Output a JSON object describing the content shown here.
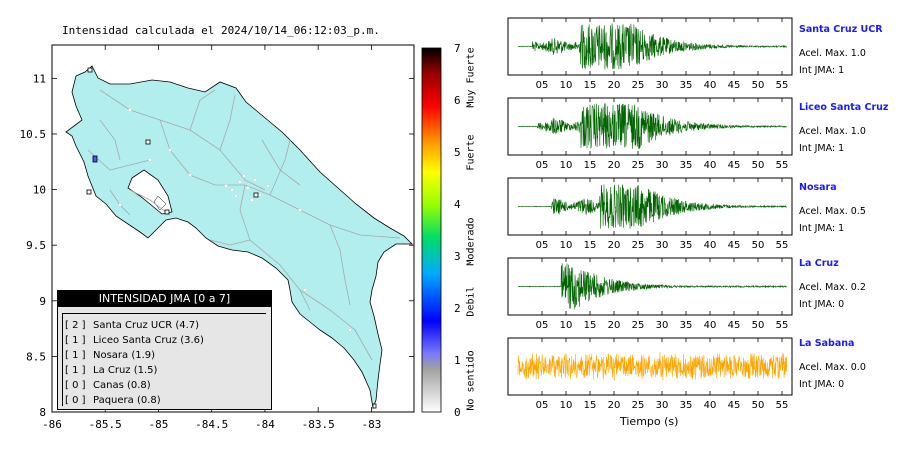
{
  "map": {
    "title": "Intensidad calculada el 2024/10/14_06:12:03_p.m.",
    "x_ticks": [
      "-86",
      "-85.5",
      "-85",
      "-84.5",
      "-84",
      "-83.5",
      "-83"
    ],
    "y_ticks": [
      "11",
      "10.5",
      "10",
      "9.5",
      "9",
      "8.5",
      "8"
    ],
    "land_color": "#b2eeee",
    "border_color": "#000000"
  },
  "legend": {
    "header": "INTENSIDAD JMA [0 a 7]",
    "items": [
      {
        "level": "[ 2 ]",
        "label": "Santa Cruz UCR (4.7)"
      },
      {
        "level": "[ 1 ]",
        "label": "Liceo Santa Cruz (3.6)"
      },
      {
        "level": "[ 1 ]",
        "label": "Nosara (1.9)"
      },
      {
        "level": "[ 1 ]",
        "label": "La Cruz (1.5)"
      },
      {
        "level": "[ 0 ]",
        "label": "Canas (0.8)"
      },
      {
        "level": "[ 0 ]",
        "label": "Paquera (0.8)"
      }
    ]
  },
  "colorbar": {
    "ticks": [
      "0",
      "1",
      "2",
      "3",
      "4",
      "5",
      "6",
      "7"
    ],
    "category_labels": [
      "No sentido",
      "Debil",
      "Moderado",
      "Fuerte",
      "Muy Fuerte"
    ]
  },
  "waveforms": {
    "xlabel": "Tiempo (s)",
    "x_ticks": [
      "05",
      "10",
      "15",
      "20",
      "25",
      "30",
      "35",
      "40",
      "45",
      "50",
      "55"
    ],
    "stations": [
      {
        "name": "Santa Cruz UCR",
        "accel": "Acel. Max. 1.0",
        "int": "Int JMA: 1",
        "color": "#006400"
      },
      {
        "name": "Liceo Santa Cruz",
        "accel": "Acel. Max. 1.0",
        "int": "Int JMA: 1",
        "color": "#006400"
      },
      {
        "name": "Nosara",
        "accel": "Acel. Max. 0.5",
        "int": "Int JMA: 1",
        "color": "#006400"
      },
      {
        "name": "La Cruz",
        "accel": "Acel. Max. 0.2",
        "int": "Int JMA: 0",
        "color": "#006400"
      },
      {
        "name": "La Sabana",
        "accel": "Acel. Max. 0.0",
        "int": "Int JMA: 0",
        "color": "#ffa500"
      }
    ]
  },
  "chart_data": [
    {
      "type": "scatter",
      "title": "Intensidad calculada el 2024/10/14_06:12:03_p.m.",
      "xlabel": "",
      "ylabel": "",
      "xlim": [
        -86,
        -82.6
      ],
      "ylim": [
        8,
        11.3
      ],
      "legend_title": "INTENSIDAD JMA [0 a 7]",
      "stations": [
        {
          "name": "Santa Cruz UCR",
          "value": 4.7,
          "jma": 2
        },
        {
          "name": "Liceo Santa Cruz",
          "value": 3.6,
          "jma": 1
        },
        {
          "name": "Nosara",
          "value": 1.9,
          "jma": 1
        },
        {
          "name": "La Cruz",
          "value": 1.5,
          "jma": 1
        },
        {
          "name": "Canas",
          "value": 0.8,
          "jma": 0
        },
        {
          "name": "Paquera",
          "value": 0.8,
          "jma": 0
        }
      ],
      "colorbar_range": [
        0,
        7
      ]
    },
    {
      "type": "line",
      "xlabel": "Tiempo (s)",
      "xlim": [
        0,
        56
      ],
      "series": [
        {
          "name": "Santa Cruz UCR",
          "peak": 1.0,
          "jma": 1
        },
        {
          "name": "Liceo Santa Cruz",
          "peak": 1.0,
          "jma": 1
        },
        {
          "name": "Nosara",
          "peak": 0.5,
          "jma": 1
        },
        {
          "name": "La Cruz",
          "peak": 0.2,
          "jma": 0
        },
        {
          "name": "La Sabana",
          "peak": 0.0,
          "jma": 0
        }
      ]
    }
  ]
}
